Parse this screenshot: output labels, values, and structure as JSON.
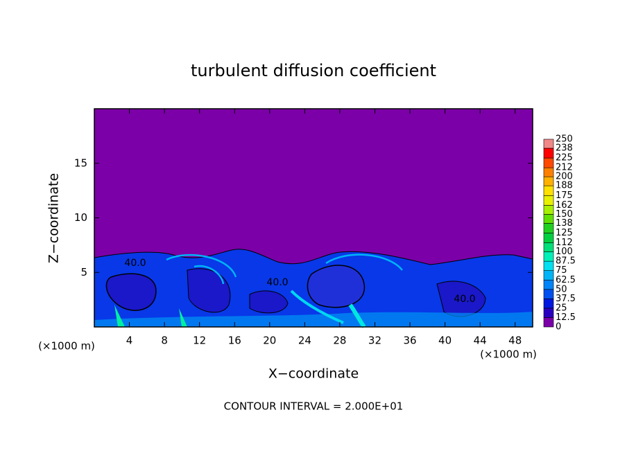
{
  "chart_data": {
    "type": "contour",
    "title": "turbulent diffusion coefficient",
    "xlabel": "X−coordinate",
    "ylabel": "Z−coordinate",
    "x_unit": "(×1000 m)",
    "xlim": [
      0,
      50
    ],
    "xticks": [
      4,
      8,
      12,
      16,
      20,
      24,
      28,
      32,
      36,
      40,
      44,
      48
    ],
    "ylim": [
      0,
      20
    ],
    "yticks": [
      5,
      10,
      15
    ],
    "colorbar": {
      "levels": [
        0,
        12.5,
        25,
        37.5,
        50,
        62.5,
        75,
        87.5,
        100,
        112,
        125,
        138,
        150,
        162,
        175,
        188,
        200,
        212,
        225,
        238,
        250
      ],
      "colors": [
        "#7b00a8",
        "#2a00c0",
        "#0018e0",
        "#0050f0",
        "#0084f8",
        "#00b4f8",
        "#00e0f0",
        "#00f0b8",
        "#00e078",
        "#00d040",
        "#20d020",
        "#60e000",
        "#a8f000",
        "#e8f000",
        "#ffe000",
        "#ffb000",
        "#ff8000",
        "#ff4800",
        "#ff0000",
        "#f08888"
      ]
    },
    "contour_labels": [
      "40.0",
      "40.0",
      "40.0"
    ],
    "footer": "CONTOUR INTERVAL = 2.000E+01"
  }
}
